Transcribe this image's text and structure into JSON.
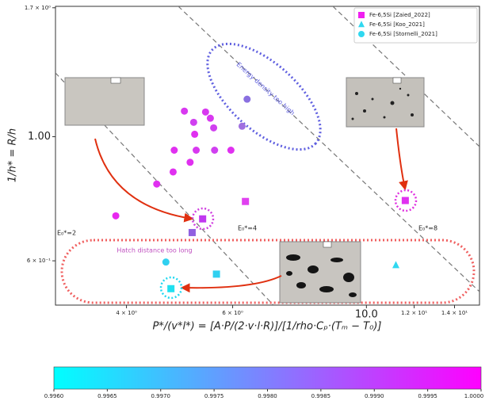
{
  "chart_data": {
    "type": "scatter",
    "xlabel": "P*/(v*l*) = [A·P/(2·v·l·R)]/[1/rho·Cₚ·(Tₘ − T₀)]",
    "ylabel": "1/h* = R/h",
    "xscale": "log",
    "yscale": "log",
    "xlim": [
      3.05,
      15.4
    ],
    "ylim": [
      0.5,
      1.71
    ],
    "xticks": [
      {
        "value": 4,
        "label": "4 × 10⁰"
      },
      {
        "value": 6,
        "label": "6 × 10⁰"
      },
      {
        "value": 10,
        "label": "10.0"
      },
      {
        "value": 12,
        "label": "1.2 × 10¹"
      },
      {
        "value": 14,
        "label": "1.4 × 10¹"
      }
    ],
    "yticks": [
      {
        "value": 1.7,
        "label": "1.7 × 10⁰"
      },
      {
        "value": 1,
        "label": "1.00"
      },
      {
        "value": 0.6,
        "label": "6 × 10⁻¹"
      }
    ],
    "legend": "upper right",
    "series": [
      {
        "name": "Fe-6,5Si [Zaied_2022]",
        "marker": "square",
        "color": "#f020f0",
        "x": [
          5.35,
          6.3,
          5.14,
          5.64,
          4.74,
          11.6
        ],
        "values": [
          0.713,
          0.766,
          0.674,
          0.568,
          0.535,
          0.769
        ],
        "colors": [
          "#c038f0",
          "#e040f0",
          "#9060e0",
          "#30d0f0",
          "#20e0f0",
          "#e030f0"
        ]
      },
      {
        "name": "Fe-6,5Si [Koo_2021]",
        "marker": "triangle",
        "color": "#30d8f0",
        "x": [
          11.19
        ],
        "values": [
          0.589
        ],
        "colors": [
          "#30d8f0"
        ]
      },
      {
        "name": "Fe-6,5Si [Stornelli_2021]",
        "marker": "circle",
        "color": "#30d8f0",
        "x": [
          4.99,
          5.41,
          5.17,
          5.51,
          5.19,
          5.58,
          4.8,
          5.22,
          5.6,
          5.96,
          5.1,
          4.78,
          4.49,
          3.84,
          6.22,
          6.34,
          4.65
        ],
        "values": [
          1.111,
          1.107,
          1.061,
          1.079,
          1.01,
          1.037,
          0.946,
          0.946,
          0.946,
          0.946,
          0.9,
          0.865,
          0.823,
          0.722,
          1.044,
          1.167,
          0.597
        ],
        "colors": [
          "#d838f0",
          "#d838f0",
          "#d040f0",
          "#d838f0",
          "#e030f0",
          "#d040f0",
          "#e030f0",
          "#d838f0",
          "#d040f0",
          "#e030f0",
          "#e030f0",
          "#e030f0",
          "#e030f0",
          "#e828f0",
          "#a070e0",
          "#8a70e0",
          "#30d0f0"
        ]
      }
    ],
    "annotations": [
      "E₀*=2",
      "E₀*=4",
      "E₀*=8",
      "Energy density too high",
      "Hatch distance too long"
    ],
    "colorbar": {
      "lim": [
        0.996,
        1.0
      ],
      "colors": [
        "#00ffff",
        "#ff00ff"
      ],
      "ticks": [
        {
          "value": 0.996,
          "label": "0.9960"
        },
        {
          "value": 0.9965,
          "label": "0.9965"
        },
        {
          "value": 0.997,
          "label": "0.9970"
        },
        {
          "value": 0.9975,
          "label": "0.9975"
        },
        {
          "value": 0.998,
          "label": "0.9980"
        },
        {
          "value": 0.9985,
          "label": "0.9985"
        },
        {
          "value": 0.999,
          "label": "0.9990"
        },
        {
          "value": 0.9995,
          "label": "0.9995"
        },
        {
          "value": 1.0,
          "label": "1.0000"
        }
      ]
    }
  }
}
